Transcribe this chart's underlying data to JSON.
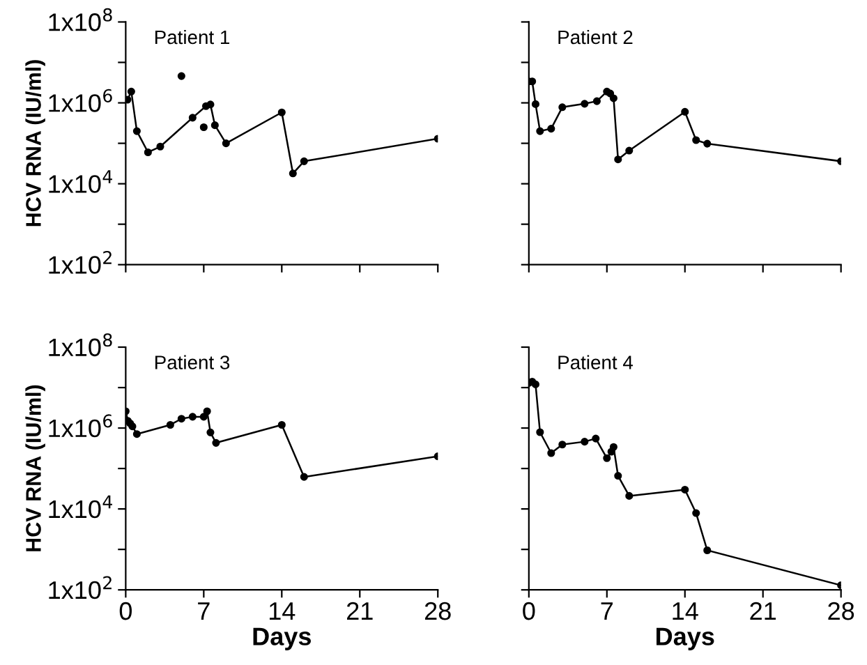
{
  "chart_data": [
    {
      "type": "line",
      "ylabel": "HCV RNA (IU/ml)",
      "annotations": [
        "Patient 1"
      ],
      "log": true,
      "marker": "circle",
      "line_style": "solid",
      "grid": false,
      "tick_labels": "y",
      "xlim": [
        0,
        28
      ],
      "xticks": [
        0,
        7,
        14,
        21,
        28
      ],
      "ylim": [
        100,
        100000000
      ],
      "yticks": [
        {
          "value": 100,
          "label": "1x10$^{2}$"
        },
        {
          "value": 1000,
          "label": null
        },
        {
          "value": 10000,
          "label": "1x10$^{4}$"
        },
        {
          "value": 100000,
          "label": null
        },
        {
          "value": 1000000,
          "label": "1x10$^{6}$"
        },
        {
          "value": 10000000,
          "label": null
        },
        {
          "value": 100000000,
          "label": "1x10$^{8}$"
        }
      ],
      "series": [
        {
          "color": "#000000",
          "x": [
            0.16,
            0.5,
            1,
            2,
            3.1,
            6,
            7.2,
            7.6,
            8,
            9,
            14,
            15,
            16,
            28
          ],
          "values": [
            1200000,
            1900000,
            200000,
            60000,
            83000,
            430000,
            830000,
            910000,
            280000,
            100000,
            580000,
            18000,
            36000,
            130000
          ]
        },
        {
          "type": "scatter",
          "color": "#000000",
          "x": [
            5,
            7
          ],
          "values": [
            4600000,
            250000
          ]
        }
      ]
    },
    {
      "type": "line",
      "annotations": [
        "Patient 2"
      ],
      "log": true,
      "marker": "circle",
      "line_style": "solid",
      "grid": false,
      "tick_labels": false,
      "xlim": [
        0,
        28
      ],
      "xticks": [
        0,
        7,
        14,
        21,
        28
      ],
      "ylim": [
        100,
        100000000
      ],
      "yticks": [
        {
          "value": 100,
          "label": null
        },
        {
          "value": 1000,
          "label": null
        },
        {
          "value": 10000,
          "label": null
        },
        {
          "value": 100000,
          "label": null
        },
        {
          "value": 1000000,
          "label": null
        },
        {
          "value": 10000000,
          "label": null
        },
        {
          "value": 100000000,
          "label": null
        }
      ],
      "series": [
        {
          "color": "#000000",
          "x": [
            0,
            0.3,
            0.6,
            1,
            2,
            3,
            5,
            6.1,
            7,
            7.3,
            7.6,
            8,
            9,
            14,
            15,
            16,
            28
          ],
          "values": [
            3400000,
            3400000,
            930000,
            200000,
            230000,
            780000,
            950000,
            1100000,
            1900000,
            1700000,
            1300000,
            40000,
            66000,
            600000,
            120000,
            98000,
            36000
          ]
        }
      ]
    },
    {
      "type": "line",
      "xlabel": "Days",
      "ylabel": "HCV RNA (IU/ml)",
      "annotations": [
        "Patient 3"
      ],
      "log": true,
      "marker": "circle",
      "line_style": "solid",
      "grid": false,
      "xlim": [
        0,
        28
      ],
      "xticks": [
        0,
        7,
        14,
        21,
        28
      ],
      "ylim": [
        100,
        100000000
      ],
      "yticks": [
        {
          "value": 100,
          "label": "1x10$^{2}$"
        },
        {
          "value": 1000,
          "label": null
        },
        {
          "value": 10000,
          "label": "1x10$^{4}$"
        },
        {
          "value": 100000,
          "label": null
        },
        {
          "value": 1000000,
          "label": "1x10$^{6}$"
        },
        {
          "value": 10000000,
          "label": null
        },
        {
          "value": 100000000,
          "label": "1x10$^{8}$"
        }
      ],
      "series": [
        {
          "color": "#000000",
          "x": [
            0,
            0.2,
            0.4,
            0.6,
            1,
            4,
            5,
            6,
            7,
            7.3,
            7.6,
            8.1,
            14,
            16,
            28
          ],
          "values": [
            2600000,
            1500000,
            1300000,
            1100000,
            710000,
            1200000,
            1700000,
            1900000,
            1900000,
            2600000,
            780000,
            430000,
            1200000,
            62000,
            200000
          ]
        }
      ]
    },
    {
      "type": "line",
      "xlabel": "Days",
      "annotations": [
        "Patient 4"
      ],
      "log": true,
      "marker": "circle",
      "line_style": "solid",
      "grid": false,
      "tick_labels": "x",
      "xlim": [
        0,
        28
      ],
      "xticks": [
        0,
        7,
        14,
        21,
        28
      ],
      "ylim": [
        100,
        100000000
      ],
      "yticks": [
        {
          "value": 100,
          "label": null
        },
        {
          "value": 1000,
          "label": null
        },
        {
          "value": 10000,
          "label": null
        },
        {
          "value": 100000,
          "label": null
        },
        {
          "value": 1000000,
          "label": null
        },
        {
          "value": 10000000,
          "label": null
        },
        {
          "value": 100000000,
          "label": null
        }
      ],
      "series": [
        {
          "color": "#000000",
          "x": [
            0,
            0.3,
            0.6,
            1,
            2,
            3,
            5,
            6,
            7,
            7.4,
            7.6,
            8,
            9,
            14,
            15,
            16,
            28
          ],
          "values": [
            13000000,
            14000000,
            12000000,
            790000,
            240000,
            390000,
            460000,
            550000,
            180000,
            260000,
            340000,
            66000,
            21000,
            30000,
            7900,
            950,
            130
          ]
        }
      ]
    }
  ]
}
